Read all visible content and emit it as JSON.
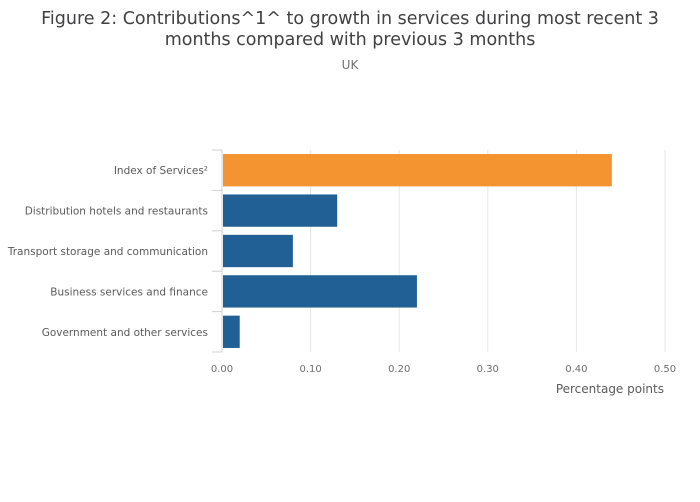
{
  "chart_data": {
    "type": "bar",
    "orientation": "horizontal",
    "title_line1": "Figure 2: Contributions^1^ to growth in services during most recent 3",
    "title_line2": "months compared with previous 3 months",
    "subtitle": "UK",
    "categories": [
      "Index of Services²",
      "Distribution hotels and restaurants",
      "Transport storage and communication",
      "Business services and finance",
      "Government and other services"
    ],
    "values": [
      0.44,
      0.13,
      0.08,
      0.22,
      0.02
    ],
    "colors": [
      "#f39431",
      "#206095",
      "#206095",
      "#206095",
      "#206095"
    ],
    "xlabel": "Percentage points",
    "ylabel": "",
    "xlim": [
      0,
      0.5
    ],
    "xticks": [
      0,
      0.1,
      0.2,
      0.3,
      0.4,
      0.5
    ],
    "xtick_labels": [
      "0.00",
      "0.10",
      "0.20",
      "0.30",
      "0.40",
      "0.50"
    ],
    "grid": true,
    "legend": "none"
  }
}
